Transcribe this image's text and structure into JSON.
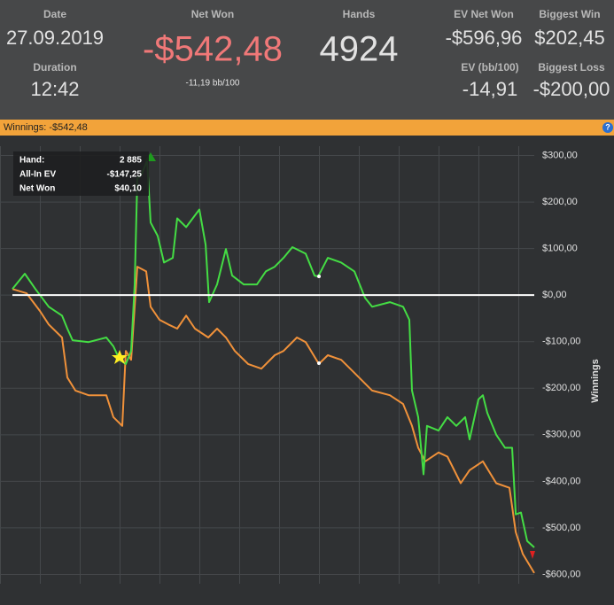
{
  "header": {
    "date_label": "Date",
    "date": "27.09.2019",
    "duration_label": "Duration",
    "duration": "12:42",
    "net_won_label": "Net Won",
    "net_won": "-$542,48",
    "bb100": "-11,19 bb/100",
    "hands_label": "Hands",
    "hands": "4924",
    "ev_net_won_label": "EV Net Won",
    "ev_net_won": "-$596,96",
    "biggest_win_label": "Biggest Win",
    "biggest_win": "$202,45",
    "ev_bb100_label": "EV (bb/100)",
    "ev_bb100": "-14,91",
    "biggest_loss_label": "Biggest Loss",
    "biggest_loss": "-$200,00"
  },
  "winnings_bar": "Winnings: -$542,48",
  "help_icon": "?",
  "tooltip": {
    "hand_label": "Hand:",
    "hand": "2 885",
    "ev_label": "All-In EV",
    "ev": "-$147,25",
    "net_label": "Net Won",
    "net": "$40,10"
  },
  "chart_data": {
    "type": "line",
    "y_label": "Winnings",
    "xlim": [
      0,
      4924
    ],
    "ylim": [
      -620,
      320
    ],
    "yticks": [
      {
        "value": 300,
        "label": "$300,00"
      },
      {
        "value": 200,
        "label": "$200,00"
      },
      {
        "value": 100,
        "label": "$100,00"
      },
      {
        "value": 0,
        "label": "$0,00"
      },
      {
        "value": -100,
        "label": "-$100,00"
      },
      {
        "value": -200,
        "label": "-$200,00"
      },
      {
        "value": -300,
        "label": "-$300,00"
      },
      {
        "value": -400,
        "label": "-$400,00"
      },
      {
        "value": -500,
        "label": "-$500,00"
      },
      {
        "value": -600,
        "label": "-$600,00"
      }
    ],
    "grid": true,
    "zero_line": true,
    "series": [
      {
        "color": "#f0913a",
        "x": [
          0,
          134,
          259,
          343,
          468,
          518,
          594,
          719,
          886,
          953,
          1037,
          1070,
          1120,
          1179,
          1262,
          1304,
          1388,
          1471,
          1555,
          1639,
          1722,
          1848,
          1931,
          2015,
          2098,
          2224,
          2349,
          2475,
          2558,
          2684,
          2767,
          2892,
          2976,
          3102,
          3227,
          3394,
          3561,
          3687,
          3770,
          3829,
          3896,
          4021,
          4105,
          4230,
          4314,
          4439,
          4565,
          4690,
          4749,
          4816,
          4924
        ],
        "values": [
          13,
          4,
          -34,
          -63,
          -91,
          -177,
          -205,
          -215,
          -215,
          -262,
          -281,
          -120,
          -139,
          61,
          51,
          -25,
          -53,
          -63,
          -72,
          -44,
          -72,
          -91,
          -72,
          -91,
          -120,
          -148,
          -158,
          -129,
          -120,
          -91,
          -101,
          -148,
          -129,
          -139,
          -167,
          -205,
          -215,
          -234,
          -281,
          -328,
          -357,
          -338,
          -347,
          -404,
          -376,
          -357,
          -404,
          -414,
          -509,
          -556,
          -597
        ]
      },
      {
        "color": "#44dd44",
        "x": [
          0,
          117,
          217,
          343,
          468,
          518,
          568,
          719,
          886,
          953,
          1012,
          1070,
          1120,
          1154,
          1179,
          1221,
          1271,
          1304,
          1371,
          1430,
          1513,
          1555,
          1639,
          1764,
          1823,
          1856,
          1931,
          2015,
          2073,
          2182,
          2307,
          2391,
          2475,
          2558,
          2642,
          2767,
          2851,
          2885,
          2976,
          3102,
          3227,
          3327,
          3394,
          3561,
          3687,
          3745,
          3770,
          3829,
          3879,
          3912,
          4021,
          4105,
          4188,
          4272,
          4314,
          4397,
          4439,
          4481,
          4565,
          4648,
          4715,
          4749,
          4799,
          4857,
          4924
        ],
        "values": [
          13,
          46,
          13,
          -25,
          -44,
          -72,
          -97,
          -101,
          -91,
          -110,
          -139,
          -148,
          -120,
          23,
          251,
          260,
          289,
          156,
          127,
          70,
          80,
          165,
          146,
          184,
          108,
          -15,
          23,
          99,
          42,
          23,
          23,
          51,
          61,
          80,
          103,
          89,
          42,
          40,
          80,
          70,
          51,
          -6,
          -25,
          -15,
          -25,
          -53,
          -205,
          -262,
          -385,
          -281,
          -291,
          -262,
          -281,
          -262,
          -310,
          -224,
          -215,
          -253,
          -300,
          -328,
          -328,
          -471,
          -467,
          -528,
          -542
        ]
      }
    ]
  }
}
